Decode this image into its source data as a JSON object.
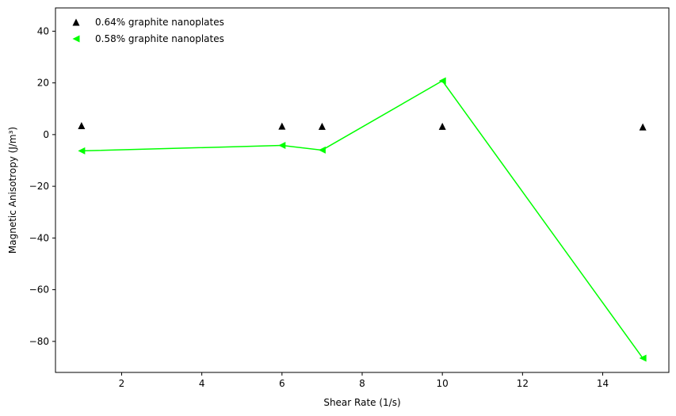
{
  "chart_data": {
    "type": "scatter",
    "xlabel": "Shear Rate (1/s)",
    "ylabel": "Magnetic Anisotropy (J/m³)",
    "xlim": [
      0.35,
      15.65
    ],
    "ylim": [
      -92,
      49
    ],
    "xticks": [
      2,
      4,
      6,
      8,
      10,
      12,
      14
    ],
    "yticks": [
      -80,
      -60,
      -40,
      -20,
      0,
      20,
      40
    ],
    "tick_labels_x": [
      "2",
      "4",
      "6",
      "8",
      "10",
      "12",
      "14"
    ],
    "tick_labels_y": [
      "−80",
      "−60",
      "−40",
      "−20",
      "0",
      "20",
      "40"
    ],
    "grid": false,
    "legend_position": "top-left",
    "series": [
      {
        "name": "0.64% graphite nanoplates",
        "marker": "triangle-up",
        "line": false,
        "color": "#000000",
        "x": [
          1,
          6,
          7,
          10,
          15
        ],
        "y": [
          3.5,
          3.3,
          3.2,
          3.2,
          3.0
        ]
      },
      {
        "name": "0.58% graphite nanoplates",
        "marker": "triangle-left",
        "line": true,
        "color": "#00ff00",
        "x": [
          1,
          6,
          7,
          10,
          15
        ],
        "y": [
          -6.3,
          -4.2,
          -6.0,
          20.8,
          -86.5
        ]
      }
    ]
  }
}
